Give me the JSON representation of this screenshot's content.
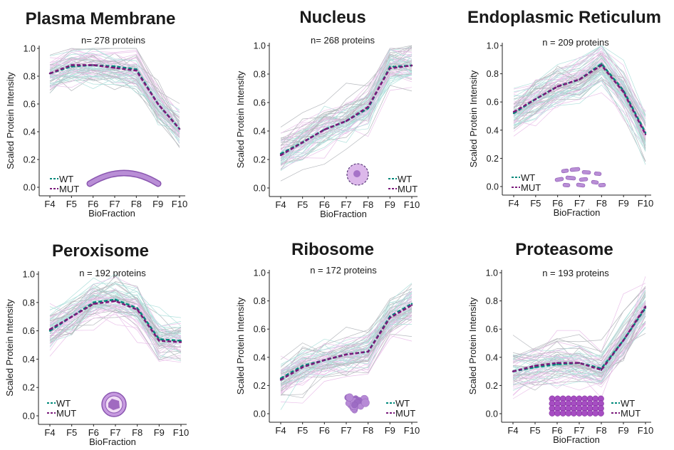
{
  "colors": {
    "wt": "#00897b",
    "mut": "#7b1a7b",
    "bundle_teal": "#6fc8c0",
    "bundle_pink": "#d88ed8",
    "bundle_gray": "#7a7f88",
    "icon_fill": "#b98ed6",
    "icon_stroke": "#8a56b0"
  },
  "chart_data": [
    {
      "type": "line",
      "title": "Plasma Membrane",
      "subtitle": "n= 278 proteins",
      "xlabel": "BioFraction",
      "ylabel": "Scaled Protein Intensity",
      "categories": [
        "F4",
        "F5",
        "F6",
        "F7",
        "F8",
        "F9",
        "F10"
      ],
      "ylim": [
        0,
        1
      ],
      "yticks": [
        "0.0",
        "0.2",
        "0.4",
        "0.6",
        "0.8",
        "1.0"
      ],
      "series": [
        {
          "name": "WT",
          "values": [
            0.82,
            0.87,
            0.88,
            0.87,
            0.85,
            0.6,
            0.42
          ]
        },
        {
          "name": "MUT",
          "values": [
            0.82,
            0.88,
            0.88,
            0.86,
            0.84,
            0.6,
            0.42
          ]
        }
      ],
      "legend": "bottom-left",
      "icon": "membrane-arc-icon"
    },
    {
      "type": "line",
      "title": "Nucleus",
      "subtitle": "n= 268 proteins",
      "xlabel": "BioFraction",
      "ylabel": "Scaled Protein Intensity",
      "categories": [
        "F4",
        "F5",
        "F6",
        "F7",
        "F8",
        "F9",
        "F10"
      ],
      "ylim": [
        0,
        1
      ],
      "yticks": [
        "0.0",
        "0.2",
        "0.4",
        "0.6",
        "0.8",
        "1.0"
      ],
      "series": [
        {
          "name": "WT",
          "values": [
            0.24,
            0.32,
            0.41,
            0.47,
            0.56,
            0.85,
            0.86
          ]
        },
        {
          "name": "MUT",
          "values": [
            0.23,
            0.32,
            0.41,
            0.47,
            0.57,
            0.84,
            0.86
          ]
        }
      ],
      "legend": "bottom-right",
      "icon": "nucleus-icon"
    },
    {
      "type": "line",
      "title": "Endoplasmic Reticulum",
      "subtitle": "n = 209 proteins",
      "xlabel": "BioFraction",
      "ylabel": "Scaled Protein Intensity",
      "categories": [
        "F4",
        "F5",
        "F6",
        "F7",
        "F8",
        "F9",
        "F10"
      ],
      "ylim": [
        0,
        1
      ],
      "yticks": [
        "0.0",
        "0.2",
        "0.4",
        "0.6",
        "0.8",
        "1.0"
      ],
      "series": [
        {
          "name": "WT",
          "values": [
            0.52,
            0.62,
            0.71,
            0.76,
            0.87,
            0.68,
            0.38
          ]
        },
        {
          "name": "MUT",
          "values": [
            0.53,
            0.62,
            0.71,
            0.76,
            0.86,
            0.67,
            0.37
          ]
        }
      ],
      "legend": "bottom-left",
      "icon": "er-icon"
    },
    {
      "type": "line",
      "title": "Peroxisome",
      "subtitle": "n = 192 proteins",
      "xlabel": "BioFraction",
      "ylabel": "Scaled Protein Intensity",
      "categories": [
        "F4",
        "F5",
        "F6",
        "F7",
        "F8",
        "F9",
        "F10"
      ],
      "ylim": [
        0,
        1
      ],
      "yticks": [
        "0.0",
        "0.2",
        "0.4",
        "0.6",
        "0.8",
        "1.0"
      ],
      "series": [
        {
          "name": "WT",
          "values": [
            0.6,
            0.7,
            0.8,
            0.82,
            0.76,
            0.54,
            0.53
          ]
        },
        {
          "name": "MUT",
          "values": [
            0.61,
            0.7,
            0.79,
            0.81,
            0.75,
            0.53,
            0.52
          ]
        }
      ],
      "legend": "bottom-left",
      "icon": "peroxisome-icon"
    },
    {
      "type": "line",
      "title": "Ribosome",
      "subtitle": "n = 172 proteins",
      "xlabel": "",
      "ylabel": "Scaled Protein Intensity",
      "categories": [
        "F4",
        "F5",
        "F6",
        "F7",
        "F8",
        "F9",
        "F10"
      ],
      "ylim": [
        0,
        1
      ],
      "yticks": [
        "0.0",
        "0.2",
        "0.4",
        "0.6",
        "0.8",
        "1.0"
      ],
      "series": [
        {
          "name": "WT",
          "values": [
            0.25,
            0.34,
            0.38,
            0.42,
            0.44,
            0.69,
            0.78
          ]
        },
        {
          "name": "MUT",
          "values": [
            0.24,
            0.33,
            0.38,
            0.42,
            0.44,
            0.68,
            0.77
          ]
        }
      ],
      "legend": "bottom-right",
      "icon": "ribosome-icon"
    },
    {
      "type": "line",
      "title": "Proteasome",
      "subtitle": "n = 193 proteins",
      "xlabel": "BioFraction",
      "ylabel": "Scaled Protein Intensity",
      "categories": [
        "F4",
        "F5",
        "F6",
        "F7",
        "F8",
        "F9",
        "F10"
      ],
      "ylim": [
        0,
        1
      ],
      "yticks": [
        "0.0",
        "0.2",
        "0.4",
        "0.6",
        "0.8",
        "1.0"
      ],
      "series": [
        {
          "name": "WT",
          "values": [
            0.3,
            0.33,
            0.35,
            0.36,
            0.32,
            0.52,
            0.75
          ]
        },
        {
          "name": "MUT",
          "values": [
            0.3,
            0.34,
            0.36,
            0.36,
            0.31,
            0.52,
            0.76
          ]
        }
      ],
      "legend": "bottom-right",
      "icon": "proteasome-icon"
    }
  ]
}
